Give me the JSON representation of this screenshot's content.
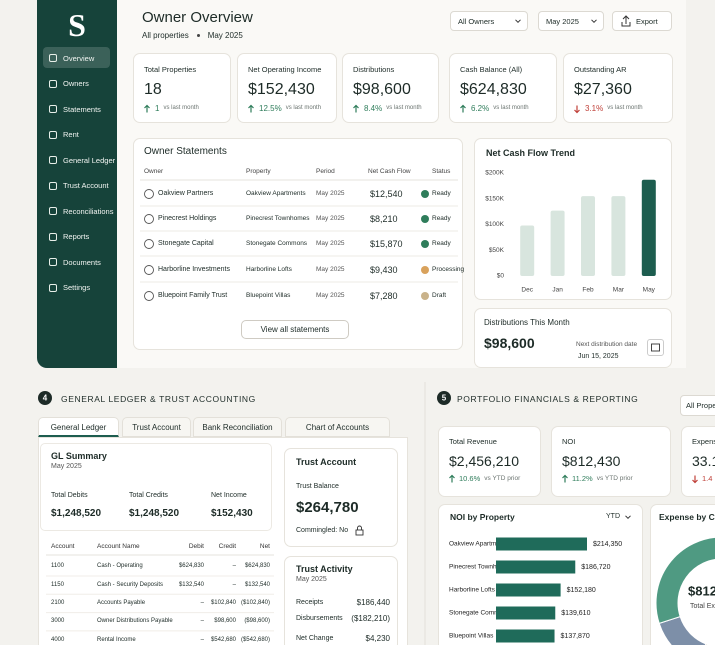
{
  "sidebar": {
    "logo": "S",
    "nav": [
      "Overview",
      "Owners",
      "Statements",
      "Rent",
      "General Ledger",
      "Trust Account",
      "Reconciliations",
      "Reports",
      "Documents",
      "Settings"
    ],
    "active": 0
  },
  "header": {
    "title": "Owner Overview",
    "scope": "All properties",
    "period": "May 2025",
    "owner_filter": "All Owners",
    "period_filter": "May 2025",
    "export": "Export"
  },
  "kpis": [
    {
      "label": "Total Properties",
      "value": "18",
      "change": "1",
      "note": "vs last month",
      "trend": "up"
    },
    {
      "label": "Net Operating Income",
      "value": "$152,430",
      "change": "12.5%",
      "note": "vs last month",
      "trend": "up"
    },
    {
      "label": "Distributions",
      "value": "$98,600",
      "change": "8.4%",
      "note": "vs last month",
      "trend": "up"
    },
    {
      "label": "Cash Balance (All)",
      "value": "$624,830",
      "change": "6.2%",
      "note": "vs last month",
      "trend": "up"
    },
    {
      "label": "Outstanding AR",
      "value": "$27,360",
      "change": "3.1%",
      "note": "vs last month",
      "trend": "down"
    }
  ],
  "owner_statements": {
    "title": "Owner Statements",
    "columns": [
      "Owner",
      "Property",
      "Period",
      "Net Cash Flow",
      "Status"
    ],
    "rows": [
      {
        "owner": "Oakview Partners",
        "property": "Oakview Apartments",
        "period": "May 2025",
        "net_cash_flow": "$12,540",
        "status": "Ready",
        "status_color": "#2f7d5b"
      },
      {
        "owner": "Pinecrest Holdings",
        "property": "Pinecrest Townhomes",
        "period": "May 2025",
        "net_cash_flow": "$8,210",
        "status": "Ready",
        "status_color": "#2f7d5b"
      },
      {
        "owner": "Stonegate Capital",
        "property": "Stonegate Commons",
        "period": "May 2025",
        "net_cash_flow": "$15,870",
        "status": "Ready",
        "status_color": "#2f7d5b"
      },
      {
        "owner": "Harborline Investments",
        "property": "Harborline Lofts",
        "period": "May 2025",
        "net_cash_flow": "$9,430",
        "status": "Processing",
        "status_color": "#d9a25c"
      },
      {
        "owner": "Bluepoint Family Trust",
        "property": "Bluepoint Villas",
        "period": "May 2025",
        "net_cash_flow": "$7,280",
        "status": "Draft",
        "status_color": "#c9b28a"
      }
    ],
    "button": "View all statements"
  },
  "distributions": {
    "title": "Distributions This Month",
    "amount": "$98,600",
    "next_label": "Next distribution date",
    "next_date": "Jun 15, 2025"
  },
  "section4": {
    "number": "4",
    "title": "GENERAL LEDGER & TRUST ACCOUNTING",
    "tabs": [
      "General Ledger",
      "Trust Account",
      "Bank Reconciliation",
      "Chart of Accounts"
    ],
    "gl_summary": {
      "title": "GL Summary",
      "period": "May 2025",
      "stats": [
        {
          "label": "Total Debits",
          "value": "$1,248,520"
        },
        {
          "label": "Total Credits",
          "value": "$1,248,520"
        },
        {
          "label": "Net Income",
          "value": "$152,430"
        }
      ]
    },
    "gl_table": {
      "columns": [
        "Account",
        "Account Name",
        "Debit",
        "Credit",
        "Net"
      ],
      "rows": [
        [
          "1100",
          "Cash - Operating",
          "$624,830",
          "–",
          "$624,830"
        ],
        [
          "1150",
          "Cash - Security Deposits",
          "$132,540",
          "–",
          "$132,540"
        ],
        [
          "2100",
          "Accounts Payable",
          "–",
          "$102,840",
          "($102,840)"
        ],
        [
          "3000",
          "Owner Distributions Payable",
          "–",
          "$98,600",
          "($98,600)"
        ],
        [
          "4000",
          "Rental Income",
          "–",
          "$542,680",
          "($542,680)"
        ]
      ]
    },
    "trust_account": {
      "title": "Trust Account",
      "balance_label": "Trust Balance",
      "balance": "$264,780",
      "commingled": "Commingled: No"
    },
    "trust_activity": {
      "title": "Trust Activity",
      "period": "May 2025",
      "rows": [
        [
          "Receipts",
          "$186,440"
        ],
        [
          "Disbursements",
          "($182,210)"
        ],
        [
          "Net Change",
          "$4,230"
        ]
      ]
    }
  },
  "section5": {
    "number": "5",
    "title": "PORTFOLIO FINANCIALS & REPORTING",
    "filter": "All Prope",
    "kpis": [
      {
        "label": "Total Revenue",
        "value": "$2,456,210",
        "change": "10.6%",
        "note": "vs YTD prior",
        "trend": "up"
      },
      {
        "label": "NOI",
        "value": "$812,430",
        "change": "11.2%",
        "note": "vs YTD prior",
        "trend": "up"
      },
      {
        "label": "Expens",
        "value": "33.1",
        "change": "1.4",
        "trend": "down"
      }
    ],
    "noi_filter": "YTD"
  },
  "chart_data": [
    {
      "type": "bar",
      "title": "Net Cash Flow Trend",
      "categories": [
        "Dec",
        "Jan",
        "Feb",
        "Mar",
        "May"
      ],
      "values": [
        98000,
        127000,
        155000,
        155000,
        187000
      ],
      "colors": [
        "#d8e5de",
        "#d8e5de",
        "#d8e5de",
        "#d8e5de",
        "#1d5d4f"
      ],
      "ylim": [
        0,
        200000
      ],
      "yticks": [
        {
          "value": 0,
          "label": "$0"
        },
        {
          "value": 50000,
          "label": "$50K"
        },
        {
          "value": 100000,
          "label": "$100K"
        },
        {
          "value": 150000,
          "label": "$150K"
        },
        {
          "value": 200000,
          "label": "$200K"
        }
      ]
    },
    {
      "type": "hbar",
      "title": "NOI by Property",
      "categories": [
        "Oakview Apartments",
        "Pinecrest Townhomes",
        "Harborline Lofts",
        "Stonegate Commons",
        "Bluepoint Villas"
      ],
      "values": [
        214350,
        186720,
        152180,
        139610,
        137870
      ],
      "value_labels": [
        "$214,350",
        "$186,720",
        "$152,180",
        "$139,610",
        "$137,870"
      ],
      "color": "#1f6b5a"
    },
    {
      "type": "pie",
      "title": "Expense by Cate",
      "center_value": "$812",
      "center_label": "Total Ex",
      "values": [
        44,
        12,
        14,
        30
      ],
      "colors": [
        "#1f6b5a",
        "#c9b28a",
        "#7d8fa8",
        "#4f9a82"
      ]
    }
  ]
}
